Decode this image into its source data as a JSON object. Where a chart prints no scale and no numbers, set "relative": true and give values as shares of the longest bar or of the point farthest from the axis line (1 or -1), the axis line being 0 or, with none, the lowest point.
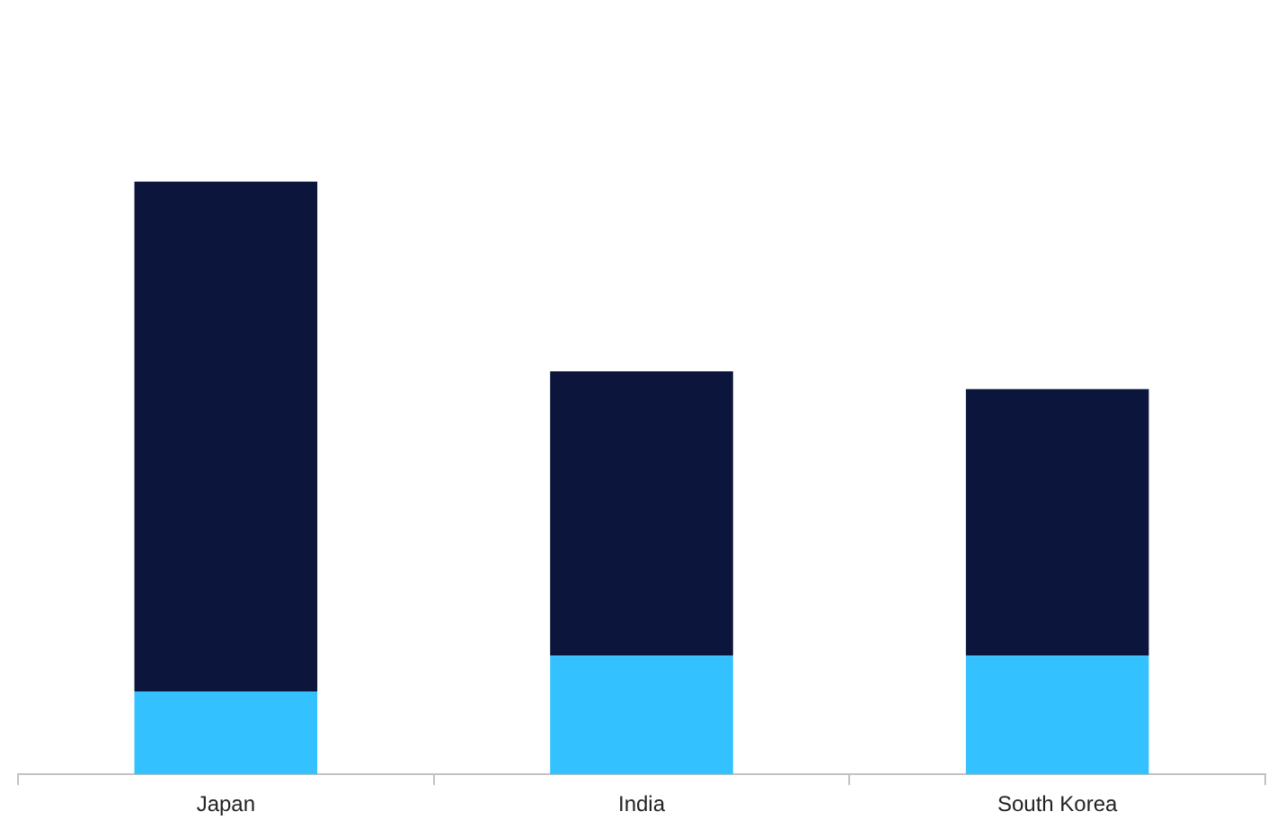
{
  "chart_data": {
    "type": "bar",
    "categories": [
      "Japan",
      "India",
      "South Korea"
    ],
    "series": [
      {
        "color": "#33c1ff",
        "values": [
          0.14,
          0.2,
          0.2
        ]
      },
      {
        "color": "#0c153c",
        "values": [
          0.86,
          0.48,
          0.45
        ]
      }
    ],
    "stacked": true,
    "relative": true
  }
}
